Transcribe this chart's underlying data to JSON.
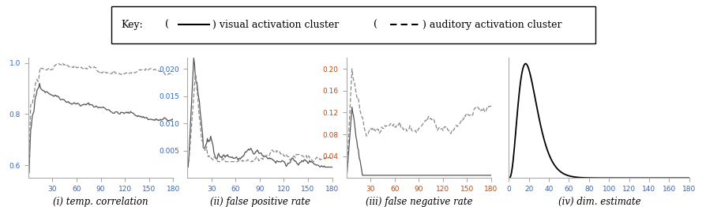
{
  "panel_labels": [
    "(i) temp. correlation",
    "(ii) false positive rate",
    "(iii) false negative rate",
    "(iv) dim. estimate"
  ],
  "xlim": [
    0,
    180
  ],
  "xticks": [
    30,
    60,
    90,
    120,
    150,
    180
  ],
  "panel1": {
    "ylim": [
      0.55,
      1.02
    ],
    "yticks": [
      0.6,
      0.8,
      1.0
    ]
  },
  "panel2": {
    "ylim": [
      0,
      0.022
    ],
    "yticks": [
      0.005,
      0.01,
      0.015,
      0.02
    ]
  },
  "panel3": {
    "ylim": [
      0,
      0.22
    ],
    "yticks": [
      0.04,
      0.08,
      0.12,
      0.16,
      0.2
    ]
  },
  "panel4": {
    "ylim": [
      0,
      1.05
    ],
    "xlim": [
      0,
      180
    ],
    "xticks": [
      0,
      20,
      40,
      60,
      80,
      100,
      120,
      140,
      160,
      180
    ]
  },
  "line_color_visual": "#555555",
  "line_color_auditory": "#888888",
  "line_width": 0.9,
  "tick_color_blue": "#3366bb",
  "tick_color_orange": "#cc4400",
  "tick_color_black": "#000000",
  "figsize": [
    8.95,
    2.62
  ],
  "dpi": 100
}
